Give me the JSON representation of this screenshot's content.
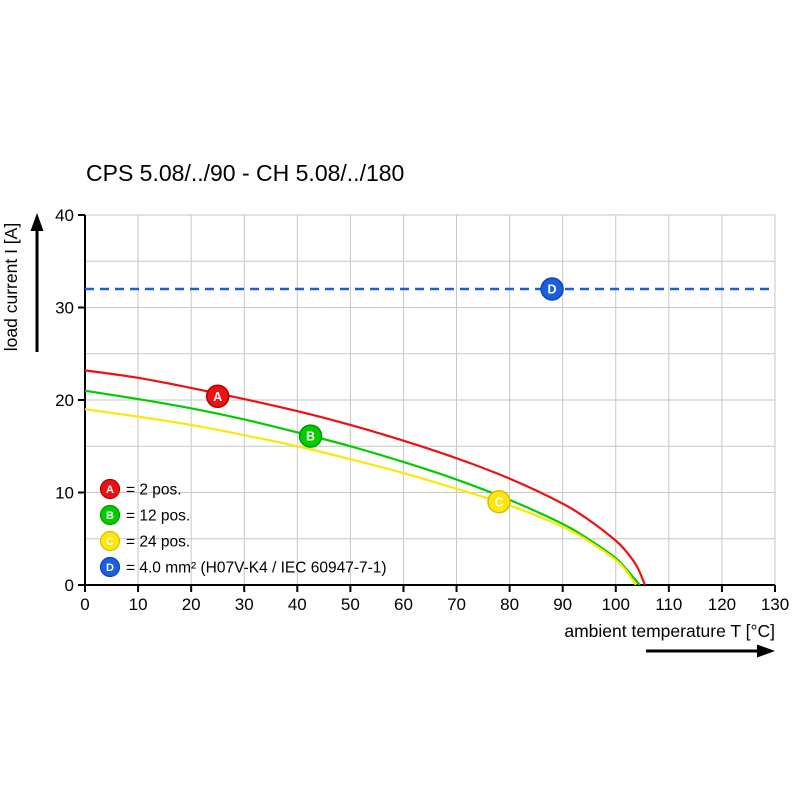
{
  "page": {
    "background": "#ffffff"
  },
  "chart_data": {
    "type": "line",
    "title": "CPS 5.08/../90 - CH 5.08/../180",
    "xlabel": "ambient temperature T [°C]",
    "ylabel": "load current I [A]",
    "xlim": [
      0,
      130
    ],
    "ylim": [
      0,
      40
    ],
    "xticks": [
      0,
      10,
      20,
      30,
      40,
      50,
      60,
      70,
      80,
      90,
      100,
      110,
      120,
      130
    ],
    "yticks": [
      0,
      10,
      20,
      30,
      40
    ],
    "grid": {
      "show": true,
      "x_step": 10,
      "y_step": 5,
      "color": "#c6c6c6"
    },
    "axis_color": "#000000",
    "legend_position": "inside bottom-left",
    "series": [
      {
        "name": "A",
        "label": "= 2 pos.",
        "color": "#ee1111",
        "edge": "#b00000",
        "style": "solid",
        "points": [
          [
            0,
            23.2
          ],
          [
            10,
            22.4
          ],
          [
            20,
            21.3
          ],
          [
            30,
            20.1
          ],
          [
            40,
            18.8
          ],
          [
            50,
            17.3
          ],
          [
            60,
            15.6
          ],
          [
            70,
            13.7
          ],
          [
            80,
            11.5
          ],
          [
            90,
            8.8
          ],
          [
            95,
            7.0
          ],
          [
            100,
            4.8
          ],
          [
            102,
            3.6
          ],
          [
            104,
            2.0
          ],
          [
            105.5,
            0
          ]
        ],
        "marker": {
          "x": 25,
          "y": 20.4
        }
      },
      {
        "name": "B",
        "label": "= 12 pos.",
        "color": "#00cc00",
        "edge": "#009900",
        "style": "solid",
        "points": [
          [
            0,
            21.0
          ],
          [
            10,
            20.1
          ],
          [
            20,
            19.1
          ],
          [
            30,
            17.9
          ],
          [
            40,
            16.5
          ],
          [
            50,
            15.0
          ],
          [
            60,
            13.3
          ],
          [
            70,
            11.4
          ],
          [
            80,
            9.2
          ],
          [
            90,
            6.6
          ],
          [
            95,
            4.9
          ],
          [
            100,
            2.9
          ],
          [
            102,
            1.7
          ],
          [
            104.5,
            0
          ]
        ],
        "marker": {
          "x": 42.5,
          "y": 16.1
        }
      },
      {
        "name": "C",
        "label": "= 24 pos.",
        "color": "#ffe60a",
        "edge": "#d4c000",
        "style": "solid",
        "points": [
          [
            0,
            19.0
          ],
          [
            10,
            18.2
          ],
          [
            20,
            17.3
          ],
          [
            30,
            16.2
          ],
          [
            40,
            15.0
          ],
          [
            50,
            13.6
          ],
          [
            60,
            12.1
          ],
          [
            70,
            10.4
          ],
          [
            80,
            8.6
          ],
          [
            90,
            6.3
          ],
          [
            95,
            4.7
          ],
          [
            100,
            2.7
          ],
          [
            102,
            1.5
          ],
          [
            103.8,
            0
          ]
        ],
        "marker": {
          "x": 78,
          "y": 9.0
        }
      },
      {
        "name": "D",
        "label": "= 4.0 mm² (H07V-K4 / IEC 60947-7-1)",
        "color": "#1a5fe0",
        "edge": "#0f46b4",
        "style": "dashed",
        "points": [
          [
            0,
            32
          ],
          [
            130,
            32
          ]
        ],
        "marker": {
          "x": 88,
          "y": 32
        }
      }
    ]
  }
}
